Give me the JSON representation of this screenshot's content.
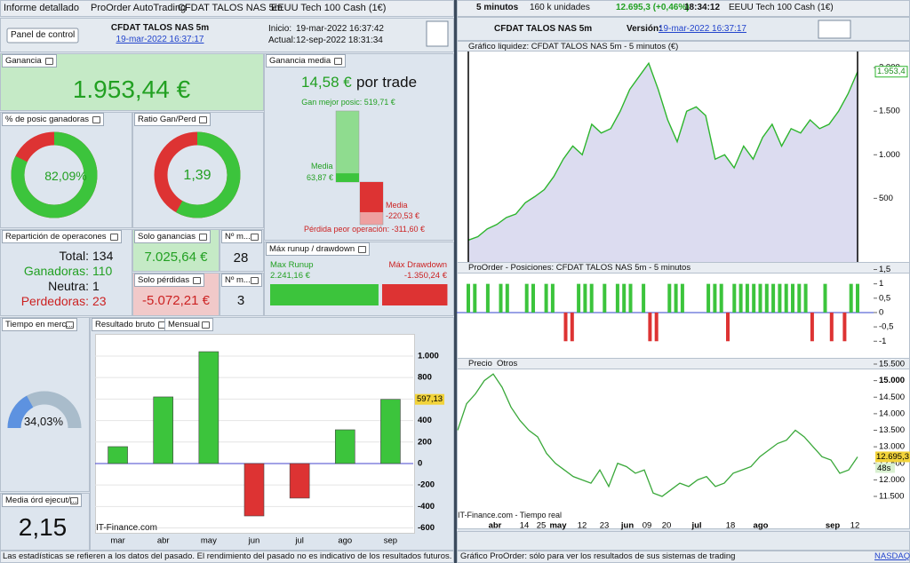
{
  "tabs": [
    "Informe detallado",
    "ProOrder AutoTrading",
    "CFDAT TALOS NAS 5m",
    "EEUU Tech 100 Cash (1€)"
  ],
  "header": {
    "menu": "Panel de control",
    "system": "CFDAT TALOS NAS 5m",
    "system_date": "19-mar-2022 16:37:17",
    "start_label": "Inicio:",
    "start": "19-mar-2022 16:37:42",
    "now_label": "Actual:",
    "now": "12-sep-2022 18:31:34"
  },
  "gain": {
    "title": "Ganancia",
    "value": "1.953,44 €"
  },
  "avg": {
    "title": "Ganancia media",
    "value": "14,58 €",
    "unit": "por trade",
    "best": {
      "value": 519.71,
      "label": "Gan mejor posic: 519,71 €"
    },
    "win_label": "Media",
    "win": {
      "value": 63.87,
      "label": "63,87 €"
    },
    "loss_label": "Media",
    "loss": {
      "value": -220.53,
      "label": "-220,53 €"
    },
    "worst": {
      "value": -311.6,
      "label": "Pérdida peor operación: -311,60 €"
    }
  },
  "win_rate": {
    "title": "% de posic ganadoras",
    "pct": {
      "value": 82.09,
      "label": "82,09%"
    }
  },
  "ratio": {
    "title": "Ratio Gan/Perd",
    "ratio": {
      "value": 1.39,
      "label": "1,39"
    }
  },
  "split": {
    "title": "Repartición de operacones",
    "rows": [
      [
        "Total:",
        "134"
      ],
      [
        "Ganadoras:",
        "110"
      ],
      [
        "Neutra:",
        "1"
      ],
      [
        "Perdedoras:",
        "23"
      ]
    ]
  },
  "wins_only": {
    "title": "Solo ganancias",
    "value": "7.025,64 €"
  },
  "wins_count": {
    "title": "Nº m...",
    "value": "28"
  },
  "losses_only": {
    "title": "Solo pérdidas",
    "value": "-5.072,21 €"
  },
  "losses_count": {
    "title": "Nº m...",
    "value": "3"
  },
  "runup": {
    "title": "Máx runup / drawdown",
    "runup_label": "Max Runup",
    "runup": {
      "value": 2241.16,
      "label": "2.241,16 €"
    },
    "drawdown_label": "Máx Drawdown",
    "drawdown": {
      "value": -1350.24,
      "label": "-1.350,24 €"
    }
  },
  "time_in_market": {
    "title": "Tiempo en merc...",
    "pct": {
      "value": 34.03,
      "label": "34,03%"
    }
  },
  "avg_orders": {
    "title": "Media órd ejecut/...",
    "value": "2,15"
  },
  "monthly": {
    "type": "bar",
    "title": "Resultado bruto",
    "period": "Mensual",
    "categories": [
      "mar",
      "abr",
      "may",
      "jun",
      "jul",
      "ago",
      "sep"
    ],
    "values": [
      157,
      620,
      1041,
      -488,
      -322,
      314,
      597.13
    ],
    "ylim": [
      -645,
      1190
    ],
    "yticks": [
      {
        "value": 1000,
        "label": "1.000"
      },
      800,
      600,
      400,
      200,
      0,
      -200,
      -400,
      -600
    ],
    "current": {
      "value": 597.13,
      "label": "597,13"
    },
    "watermark": "IT-Finance.com"
  },
  "footer_left": "Las estadísticas se refieren a los datos del pasado. El rendimiento del pasado no es indicativo de los resultados futuros.",
  "right_bar": {
    "timeframe": "5 minutos",
    "units": "160 k unidades",
    "quote": "12.695,3 (+0,46%)",
    "time": "18:34:12",
    "instrument": "EEUU Tech 100 Cash (1€)"
  },
  "right_header": {
    "system": "CFDAT TALOS NAS 5m",
    "version_label": "Versión:",
    "version": "19-mar-2022 16:37:17"
  },
  "equity": {
    "type": "area",
    "title": "Gráfico liquidez: CFDAT TALOS NAS 5m - 5 minutos (€)",
    "values": [
      20,
      60,
      150,
      200,
      280,
      320,
      450,
      520,
      600,
      750,
      950,
      1100,
      1000,
      1350,
      1250,
      1300,
      1500,
      1750,
      1900,
      2050,
      1750,
      1400,
      1150,
      1500,
      1550,
      1450,
      950,
      1000,
      850,
      1100,
      950,
      1200,
      1350,
      1100,
      1300,
      1250,
      1400,
      1300,
      1350,
      1500,
      1700,
      1953.4
    ],
    "ylim": [
      -230,
      2185
    ],
    "yticks": [
      500,
      {
        "value": 1000,
        "label": "1.000"
      },
      {
        "value": 1500,
        "label": "1.500"
      },
      {
        "value": 2000,
        "label": "2.000"
      }
    ],
    "last": {
      "value": 1953.4,
      "label": "1.953,4"
    }
  },
  "positions": {
    "type": "bar",
    "title": "ProOrder - Posiciones: CFDAT TALOS NAS 5m - 5 minutos",
    "values": [
      1,
      1,
      0,
      1,
      0,
      1,
      1,
      0,
      0,
      1,
      1,
      0,
      1,
      1,
      0,
      -1,
      -1,
      1,
      1,
      1,
      0,
      1,
      0,
      1,
      1,
      1,
      0,
      1,
      -1,
      -1,
      0,
      1,
      1,
      1,
      0,
      0,
      0,
      1,
      1,
      1,
      -1,
      1,
      1,
      1,
      1,
      1,
      1,
      1,
      1,
      1,
      1,
      1,
      1,
      -1,
      0,
      1,
      -1,
      0,
      -1,
      1,
      1
    ],
    "ylim": [
      -1.58,
      1.67
    ],
    "yticks": [
      {
        "value": 1.5,
        "label": "1,5"
      },
      1,
      {
        "value": 0.5,
        "label": "0,5"
      },
      0,
      {
        "value": -0.5,
        "label": "-0,5"
      },
      -1
    ]
  },
  "price": {
    "type": "line",
    "tabs": [
      "Precio",
      "Otros"
    ],
    "values": [
      13500,
      14300,
      14600,
      15000,
      15200,
      14800,
      14200,
      13800,
      13500,
      13300,
      12800,
      12500,
      12300,
      12100,
      12000,
      11900,
      12300,
      11800,
      12500,
      12400,
      12200,
      12300,
      11600,
      11500,
      11700,
      11900,
      11800,
      12000,
      12100,
      11800,
      11900,
      12200,
      12300,
      12400,
      12700,
      12900,
      13100,
      13200,
      13500,
      13300,
      13000,
      12700,
      12600,
      12200,
      12300,
      12695.3
    ],
    "ylim": [
      10668,
      15688
    ],
    "yticks": [
      {
        "value": 11500,
        "label": "11.500"
      },
      {
        "value": 12000,
        "label": "12.000"
      },
      {
        "value": 12500,
        "label": "12.500"
      },
      {
        "value": 13000,
        "label": "13.000"
      },
      {
        "value": 13500,
        "label": "13.500"
      },
      {
        "value": 14000,
        "label": "14.000"
      },
      {
        "value": 14500,
        "label": "14.500"
      },
      {
        "value": 15000,
        "label": "15.000"
      },
      {
        "value": 15500,
        "label": "15.500"
      }
    ],
    "last": {
      "value": 12695.3,
      "label": "12.695,3"
    },
    "countdown": "48s",
    "watermark": "IT-Finance.com - Tiempo real",
    "xlabels": [
      "abr",
      "14",
      "25",
      "may",
      "12",
      "23",
      "jun",
      "09",
      "20",
      "jul",
      "18",
      "ago",
      "sep",
      "12"
    ]
  },
  "footer_right": "Gráfico ProOrder: sólo para ver los resultados de sus sistemas de trading",
  "exchange": "NASDAQ"
}
